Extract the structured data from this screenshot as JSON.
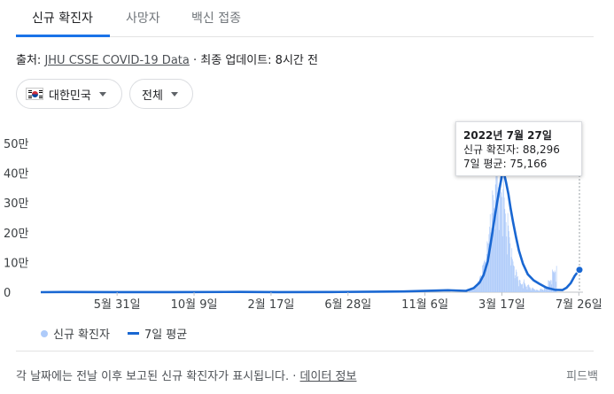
{
  "tabs": [
    {
      "label": "신규 확진자",
      "active": true
    },
    {
      "label": "사망자",
      "active": false
    },
    {
      "label": "백신 접종",
      "active": false
    }
  ],
  "source": {
    "prefix": "출처: ",
    "link": "JHU CSSE COVID-19 Data",
    "separator": " · ",
    "updated": "최종 업데이트: 8시간 전"
  },
  "filters": {
    "country": "대한민국",
    "scope": "전체"
  },
  "tooltip": {
    "date": "2022년 7월 27일",
    "cases": "신규 확진자: 88,296",
    "avg": "7일 평균: 75,166"
  },
  "legend": {
    "bars": "신규 확진자",
    "line": "7일 평균"
  },
  "footer": {
    "text": "각 날짜에는 전날 이후 보고된 신규 확진자가 표시됩니다. · ",
    "link": "데이터 정보",
    "feedback": "피드백"
  },
  "colors": {
    "bar": "#aecbfa",
    "line": "#1967d2",
    "accent": "#1a73e8"
  },
  "chart_data": {
    "type": "line",
    "y_ticks": [
      "50만",
      "40만",
      "30만",
      "20만",
      "10만",
      "0"
    ],
    "y_tick_values": [
      500000,
      400000,
      300000,
      200000,
      100000,
      0
    ],
    "ylim": [
      0,
      500000
    ],
    "x_ticks": [
      "5월 31일",
      "10월 9일",
      "2월 17일",
      "6월 28일",
      "11월 6일",
      "3월 17일",
      "7월 26일"
    ],
    "x_tick_dates": [
      "2020-05-31",
      "2020-10-09",
      "2021-02-17",
      "2021-06-28",
      "2021-11-06",
      "2022-03-17",
      "2022-07-26"
    ],
    "xlim": [
      "2020-01-22",
      "2022-07-27"
    ],
    "series": [
      {
        "name": "7일 평균",
        "points": [
          [
            "2020-01-22",
            0
          ],
          [
            "2020-03-01",
            500
          ],
          [
            "2020-06-01",
            300
          ],
          [
            "2020-09-01",
            250
          ],
          [
            "2020-12-25",
            1000
          ],
          [
            "2021-03-01",
            400
          ],
          [
            "2021-06-01",
            600
          ],
          [
            "2021-08-15",
            1800
          ],
          [
            "2021-10-01",
            2500
          ],
          [
            "2021-12-15",
            6500
          ],
          [
            "2022-01-15",
            4500
          ],
          [
            "2022-01-28",
            14000
          ],
          [
            "2022-02-07",
            32000
          ],
          [
            "2022-02-14",
            58000
          ],
          [
            "2022-02-21",
            105000
          ],
          [
            "2022-02-28",
            190000
          ],
          [
            "2022-03-05",
            255000
          ],
          [
            "2022-03-10",
            315000
          ],
          [
            "2022-03-14",
            360000
          ],
          [
            "2022-03-18",
            400000
          ],
          [
            "2022-03-20",
            405000
          ],
          [
            "2022-03-24",
            370000
          ],
          [
            "2022-03-28",
            330000
          ],
          [
            "2022-04-01",
            280000
          ],
          [
            "2022-04-05",
            235000
          ],
          [
            "2022-04-10",
            185000
          ],
          [
            "2022-04-15",
            140000
          ],
          [
            "2022-04-22",
            95000
          ],
          [
            "2022-04-30",
            60000
          ],
          [
            "2022-05-10",
            40000
          ],
          [
            "2022-05-20",
            28000
          ],
          [
            "2022-06-01",
            15000
          ],
          [
            "2022-06-15",
            8000
          ],
          [
            "2022-06-28",
            7000
          ],
          [
            "2022-07-05",
            15000
          ],
          [
            "2022-07-12",
            30000
          ],
          [
            "2022-07-19",
            55000
          ],
          [
            "2022-07-27",
            75166
          ]
        ]
      }
    ],
    "bars": {
      "name": "신규 확진자",
      "start": "2022-01-20",
      "values": [
        7000,
        6800,
        7600,
        8100,
        8500,
        9000,
        11000,
        13000,
        16000,
        18000,
        17000,
        19000,
        22000,
        23000,
        27000,
        36000,
        38000,
        36000,
        49000,
        54000,
        57000,
        53000,
        56000,
        90000,
        93000,
        99000,
        105000,
        109000,
        102000,
        95000,
        128000,
        171000,
        165000,
        163000,
        195000,
        220000,
        262000,
        201000,
        216000,
        266000,
        342000,
        327000,
        282000,
        309000,
        210000,
        362000,
        400000,
        621000,
        407000,
        334000,
        353000,
        209000,
        353000,
        395000,
        339000,
        335000,
        320000,
        188000,
        347000,
        424000,
        318000,
        280000,
        264000,
        235000,
        187000,
        127000,
        266000,
        224000,
        205000,
        185000,
        164000,
        90000,
        118000,
        148000,
        111000,
        103000,
        90000,
        87000,
        47000,
        57000,
        76000,
        68000,
        51000,
        54000,
        40000,
        20000,
        42000,
        40000,
        30000,
        26000,
        26000,
        28000,
        13000,
        35000,
        43000,
        30000,
        25000,
        19000,
        19000,
        9000,
        24000,
        26000,
        23000,
        17000,
        16000,
        12000,
        6000,
        13000,
        16000,
        14000,
        12000,
        10000,
        9000,
        5000,
        8000,
        8500,
        8000,
        7000,
        6000,
        6000,
        3500,
        10000,
        12000,
        11000,
        10000,
        9000,
        9000,
        6000,
        19000,
        20000,
        20000,
        19000,
        20000,
        20000,
        12000,
        40000,
        39000,
        38000,
        35000,
        41000,
        40000,
        26000,
        76000,
        71000,
        68000,
        65000,
        73000,
        68000,
        35000,
        88296
      ]
    },
    "hover_date": "2022-07-27",
    "grid": false
  }
}
